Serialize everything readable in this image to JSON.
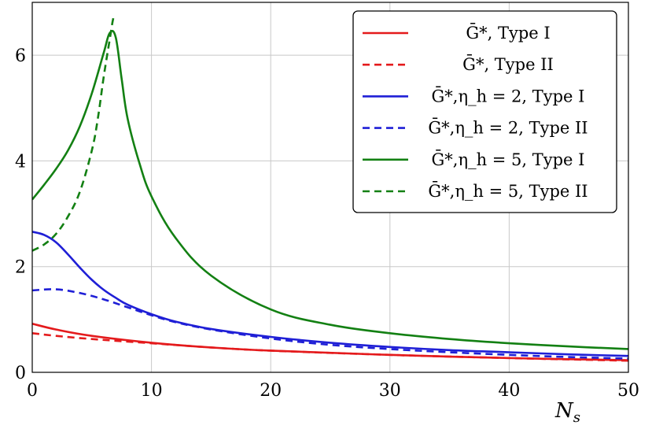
{
  "chart_data": {
    "type": "line",
    "title": "",
    "xlabel": "N_s",
    "ylabel": "",
    "xlim": [
      0,
      50
    ],
    "ylim": [
      0,
      7
    ],
    "xticks": [
      0,
      10,
      20,
      30,
      40,
      50
    ],
    "yticks": [
      0,
      2,
      4,
      6
    ],
    "grid": true,
    "legend_position": "top-right",
    "series": [
      {
        "name": "Ḡ*, Type I",
        "color": "#e41a1c",
        "dash": "solid",
        "x": [
          0,
          2,
          5,
          10,
          15,
          20,
          30,
          40,
          50
        ],
        "y": [
          0.92,
          0.81,
          0.69,
          0.56,
          0.47,
          0.41,
          0.33,
          0.27,
          0.23
        ]
      },
      {
        "name": "Ḡ*, Type II",
        "color": "#e41a1c",
        "dash": "dashed",
        "x": [
          0,
          2,
          5,
          10,
          15,
          20,
          30,
          40,
          50
        ],
        "y": [
          0.74,
          0.69,
          0.63,
          0.55,
          0.47,
          0.41,
          0.33,
          0.27,
          0.22
        ]
      },
      {
        "name": "Ḡ*,η_h = 2, Type I",
        "color": "#1f1fd6",
        "dash": "solid",
        "x": [
          0,
          1,
          2,
          3,
          4,
          5,
          6,
          7,
          8,
          10,
          12,
          15,
          20,
          25,
          30,
          35,
          40,
          45,
          50
        ],
        "y": [
          2.66,
          2.6,
          2.46,
          2.23,
          1.98,
          1.75,
          1.56,
          1.41,
          1.28,
          1.1,
          0.96,
          0.82,
          0.67,
          0.56,
          0.48,
          0.42,
          0.38,
          0.34,
          0.31
        ]
      },
      {
        "name": "Ḡ*,η_h = 2, Type II",
        "color": "#1f1fd6",
        "dash": "dashed",
        "x": [
          0,
          2,
          4,
          6,
          8,
          10,
          12,
          15,
          20,
          25,
          30,
          35,
          40,
          45,
          50
        ],
        "y": [
          1.55,
          1.57,
          1.5,
          1.38,
          1.23,
          1.08,
          0.95,
          0.81,
          0.64,
          0.52,
          0.44,
          0.38,
          0.33,
          0.29,
          0.26
        ]
      },
      {
        "name": "Ḡ*,η_h = 5, Type I",
        "color": "#138013",
        "dash": "solid",
        "x": [
          0,
          1,
          2,
          3,
          4,
          5,
          6,
          6.5,
          7,
          7.5,
          8,
          9,
          10,
          12,
          15,
          20,
          25,
          30,
          35,
          40,
          45,
          50
        ],
        "y": [
          3.27,
          3.55,
          3.85,
          4.2,
          4.66,
          5.28,
          6.05,
          6.42,
          6.34,
          5.55,
          4.8,
          3.95,
          3.33,
          2.55,
          1.83,
          1.19,
          0.9,
          0.74,
          0.63,
          0.55,
          0.49,
          0.44
        ]
      },
      {
        "name": "Ḡ*,η_h = 5, Type II",
        "color": "#138013",
        "dash": "dashed",
        "x": [
          0,
          1,
          2,
          3,
          4,
          5,
          5.5,
          6,
          6.5,
          6.8,
          7
        ],
        "y": [
          2.3,
          2.42,
          2.62,
          2.95,
          3.42,
          4.2,
          4.8,
          5.6,
          6.3,
          6.7,
          6.75
        ]
      }
    ]
  }
}
